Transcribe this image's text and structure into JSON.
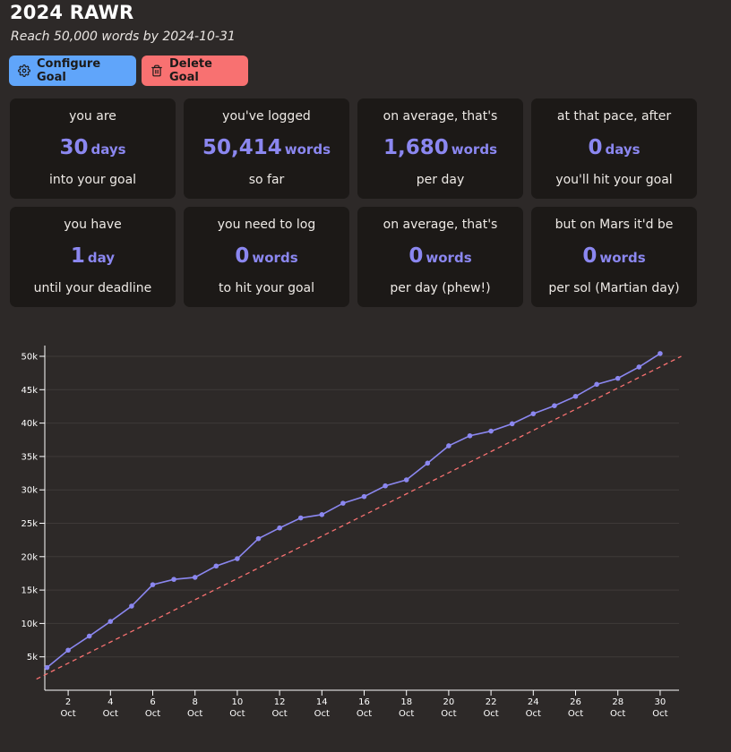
{
  "goal": {
    "title": "2024 RAWR",
    "subtitle": "Reach 50,000 words by 2024-10-31"
  },
  "actions": {
    "configure_label": "Configure Goal",
    "delete_label": "Delete Goal"
  },
  "stats": [
    {
      "top": "you are",
      "value": "30",
      "unit": "days",
      "bottom": "into your goal"
    },
    {
      "top": "you've logged",
      "value": "50,414",
      "unit": "words",
      "bottom": "so far"
    },
    {
      "top": "on average, that's",
      "value": "1,680",
      "unit": "words",
      "bottom": "per day"
    },
    {
      "top": "at that pace, after",
      "value": "0",
      "unit": "days",
      "bottom": "you'll hit your goal"
    },
    {
      "top": "you have",
      "value": "1",
      "unit": "day",
      "bottom": "until your deadline"
    },
    {
      "top": "you need to log",
      "value": "0",
      "unit": "words",
      "bottom": "to hit your goal"
    },
    {
      "top": "on average, that's",
      "value": "0",
      "unit": "words",
      "bottom": "per day (phew!)"
    },
    {
      "top": "but on Mars it'd be",
      "value": "0",
      "unit": "words",
      "bottom": "per sol (Martian day)"
    }
  ],
  "colors": {
    "accent": "#8b87f0",
    "configure_button": "#60a5fa",
    "delete_button": "#f87171",
    "target_line": "#f87171"
  },
  "chart_data": {
    "type": "line",
    "x_unit": "day of October 2024",
    "x": [
      1,
      2,
      3,
      4,
      5,
      6,
      7,
      8,
      9,
      10,
      11,
      12,
      13,
      14,
      15,
      16,
      17,
      18,
      19,
      20,
      21,
      22,
      23,
      24,
      25,
      26,
      27,
      28,
      29,
      30
    ],
    "x_ticks": [
      2,
      4,
      6,
      8,
      10,
      12,
      14,
      16,
      18,
      20,
      22,
      24,
      26,
      28,
      30
    ],
    "x_tick_labels": [
      "2",
      "4",
      "6",
      "8",
      "10",
      "12",
      "14",
      "16",
      "18",
      "20",
      "22",
      "24",
      "26",
      "28",
      "30"
    ],
    "x_tick_sublabel": "Oct",
    "y_ticks": [
      5000,
      10000,
      15000,
      20000,
      25000,
      30000,
      35000,
      40000,
      45000,
      50000
    ],
    "y_tick_labels": [
      "5k",
      "10k",
      "15k",
      "20k",
      "25k",
      "30k",
      "35k",
      "40k",
      "45k",
      "50k"
    ],
    "ylim": [
      0,
      52000
    ],
    "grid": true,
    "series": [
      {
        "values": [
          3400,
          6000,
          8100,
          10300,
          12600,
          15800,
          16600,
          16900,
          18600,
          19700,
          22700,
          24300,
          25800,
          26300,
          28000,
          29000,
          30600,
          31500,
          34000,
          36600,
          38100,
          38800,
          39900,
          41400,
          42600,
          44000,
          45800,
          46700,
          48400,
          50414
        ]
      }
    ],
    "target_line": {
      "x": [
        0.5,
        31
      ],
      "y": [
        1667,
        50000
      ]
    }
  }
}
